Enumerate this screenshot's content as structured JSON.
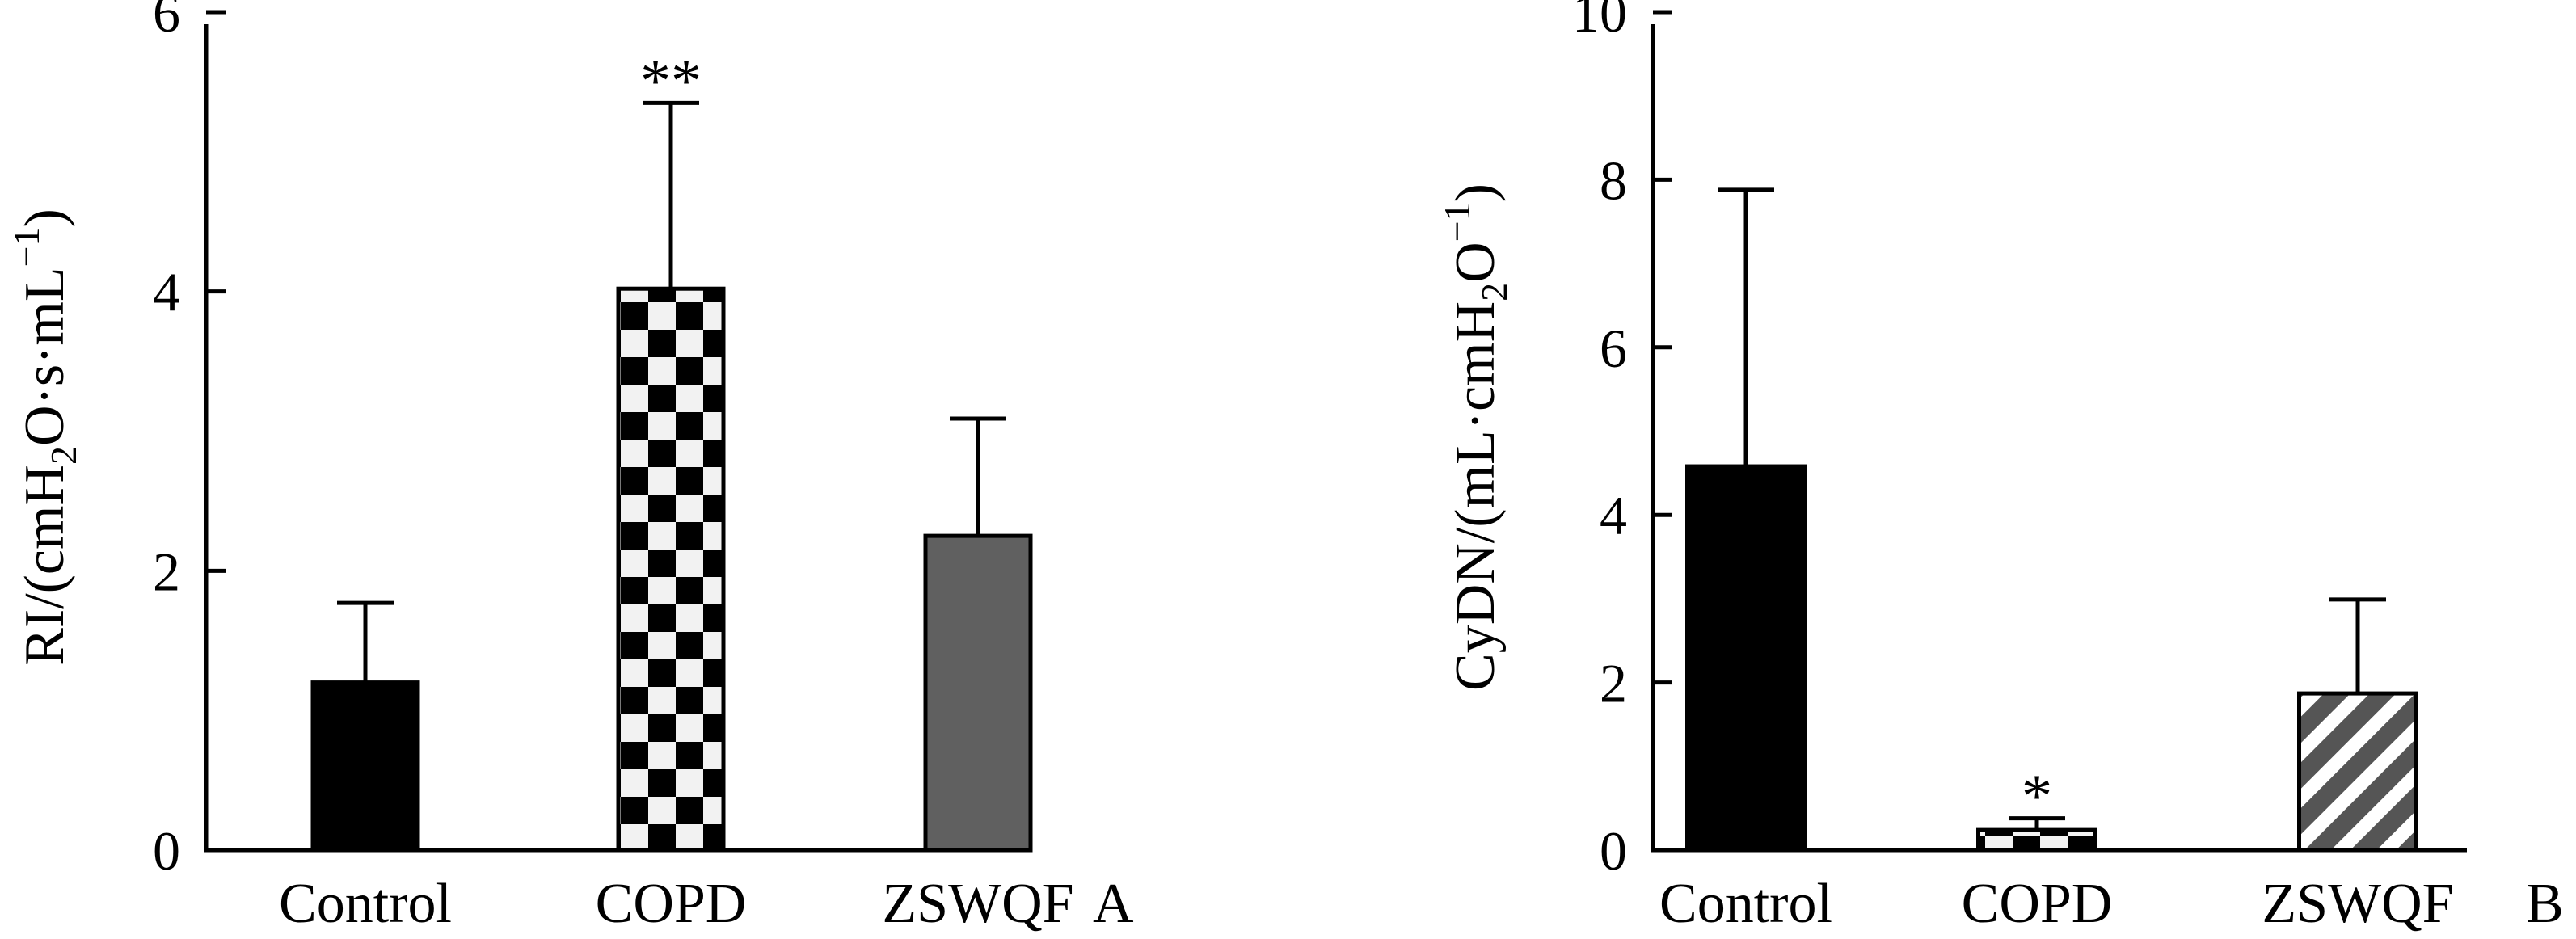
{
  "chart_data": [
    {
      "type": "bar",
      "panel": "A",
      "ylabel": "RI/(cmH2O·s·mL−1)",
      "ylabel_parts": {
        "pre": "RI/(cmH",
        "sub": "2",
        "mid": "O·s·mL",
        "sup": "−1",
        "post": ")"
      },
      "ylim": [
        0,
        6
      ],
      "yticks": [
        0,
        2,
        4,
        6
      ],
      "categories": [
        "Control",
        "COPD",
        "ZSWQF"
      ],
      "values": [
        1.2,
        4.02,
        2.25
      ],
      "errors": [
        0.57,
        1.33,
        0.84
      ],
      "significance": [
        "",
        "**",
        ""
      ],
      "patterns": [
        "solid-black",
        "checker",
        "solid-gray"
      ]
    },
    {
      "type": "bar",
      "panel": "B",
      "ylabel": "CyDN/(mL·cmH2O−1)",
      "ylabel_parts": {
        "pre": "CyDN/(mL·cmH",
        "sub": "2",
        "mid": "O",
        "sup": "−1",
        "post": ")"
      },
      "ylim": [
        0,
        10
      ],
      "yticks": [
        0,
        2,
        4,
        6,
        8,
        10
      ],
      "categories": [
        "Control",
        "COPD",
        "ZSWQF"
      ],
      "values": [
        4.58,
        0.24,
        1.87
      ],
      "errors": [
        3.3,
        0.14,
        1.12
      ],
      "significance": [
        "",
        "*",
        ""
      ],
      "patterns": [
        "solid-black",
        "checker",
        "stripes"
      ]
    }
  ],
  "colors": {
    "black": "#000000",
    "gray": "#606060",
    "light": "#f2f2f2",
    "white": "#ffffff"
  }
}
